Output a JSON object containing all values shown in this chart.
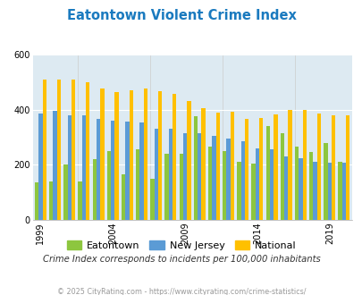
{
  "title": "Eatontown Violent Crime Index",
  "title_color": "#1a7abf",
  "subtitle": "Crime Index corresponds to incidents per 100,000 inhabitants",
  "footer": "© 2025 CityRating.com - https://www.cityrating.com/crime-statistics/",
  "years": [
    1999,
    2000,
    2001,
    2002,
    2003,
    2004,
    2005,
    2006,
    2007,
    2008,
    2009,
    2010,
    2011,
    2012,
    2013,
    2014,
    2015,
    2016,
    2017,
    2018,
    2019,
    2020
  ],
  "eatontown": [
    135,
    140,
    200,
    140,
    220,
    248,
    165,
    255,
    148,
    240,
    240,
    375,
    265,
    250,
    210,
    205,
    340,
    315,
    265,
    245,
    280,
    210
  ],
  "new_jersey": [
    385,
    395,
    378,
    378,
    365,
    360,
    358,
    355,
    330,
    330,
    315,
    315,
    305,
    295,
    285,
    260,
    255,
    230,
    225,
    210,
    207,
    207
  ],
  "national": [
    510,
    510,
    510,
    500,
    478,
    464,
    470,
    477,
    468,
    458,
    430,
    405,
    390,
    392,
    365,
    370,
    383,
    400,
    398,
    385,
    380,
    380
  ],
  "eatontown_color": "#8dc63f",
  "new_jersey_color": "#5b9bd5",
  "national_color": "#ffc000",
  "bg_color": "#ddeaf2",
  "ylim": [
    0,
    600
  ],
  "yticks": [
    0,
    200,
    400,
    600
  ],
  "xtick_years": [
    1999,
    2004,
    2009,
    2014,
    2019
  ],
  "legend_labels": [
    "Eatontown",
    "New Jersey",
    "National"
  ]
}
